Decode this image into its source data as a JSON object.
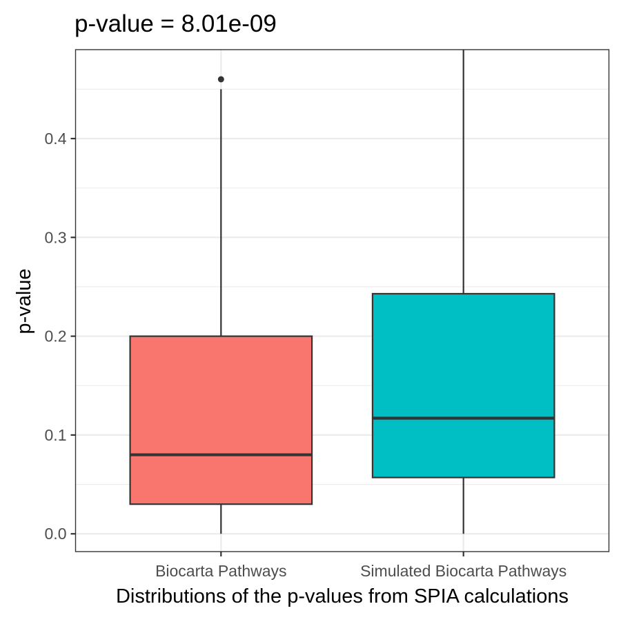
{
  "chart_data": {
    "type": "boxplot",
    "title": "p-value = 8.01e-09",
    "xlabel": "Distributions of the p-values from SPIA calculations",
    "ylabel": "p-value",
    "ylim": [
      -0.018,
      0.49
    ],
    "yticks": [
      0.0,
      0.1,
      0.2,
      0.3,
      0.4
    ],
    "ytick_labels": [
      "0.0",
      "0.1",
      "0.2",
      "0.3",
      "0.4"
    ],
    "grid": true,
    "legend": "none",
    "categories": [
      "Biocarta Pathways",
      "Simulated Biocarta Pathways"
    ],
    "boxes": [
      {
        "category": "Biocarta Pathways",
        "whisker_low": 0.0,
        "q1": 0.03,
        "median": 0.08,
        "q3": 0.2,
        "whisker_high": 0.45,
        "outliers": [
          0.46
        ],
        "color": "#F8766D"
      },
      {
        "category": "Simulated Biocarta Pathways",
        "whisker_low": 0.0,
        "q1": 0.057,
        "median": 0.117,
        "q3": 0.243,
        "whisker_high": 0.49,
        "outliers": [],
        "color": "#00BFC4"
      }
    ]
  }
}
